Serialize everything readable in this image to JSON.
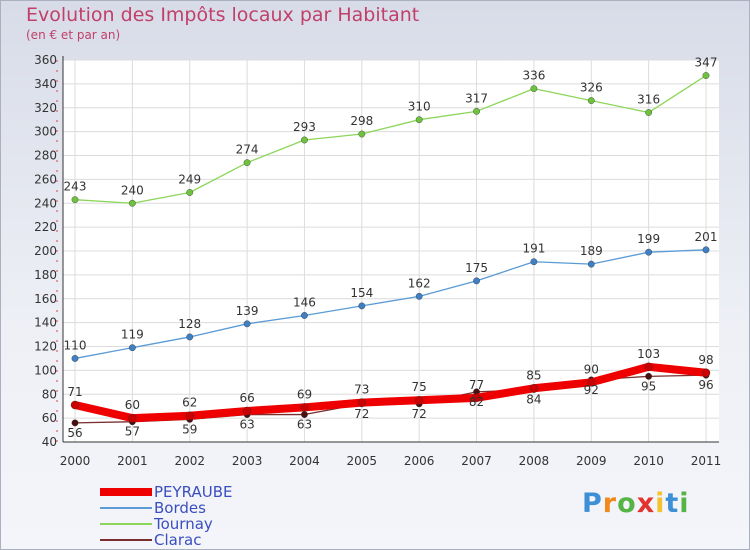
{
  "header": {
    "title": "Evolution des Impôts locaux par Habitant",
    "subtitle": "(en € et par an)"
  },
  "logo": {
    "text": "Proxiti",
    "letters": [
      "P",
      "r",
      "o",
      "x",
      "i",
      "t",
      "i"
    ],
    "colors": [
      "#3d8fd6",
      "#f08a1c",
      "#56b346",
      "#e3342f",
      "#f2c230",
      "#3d8fd6",
      "#56b346"
    ]
  },
  "chart_data": {
    "type": "line",
    "title": "Evolution des Impôts locaux par Habitant",
    "subtitle": "(en € et par an)",
    "xlabel": "",
    "ylabel": "",
    "x": [
      "2000",
      "2001",
      "2002",
      "2003",
      "2004",
      "2005",
      "2006",
      "2007",
      "2008",
      "2009",
      "2010",
      "2011"
    ],
    "ylim": [
      40,
      360
    ],
    "yticks": [
      40,
      60,
      80,
      100,
      120,
      140,
      160,
      180,
      200,
      220,
      240,
      260,
      280,
      300,
      320,
      340,
      360
    ],
    "grid": true,
    "legend": "bottom-left",
    "series": [
      {
        "name": "PEYRAUBE",
        "color": "#ee0000",
        "values": [
          71,
          60,
          62,
          66,
          69,
          73,
          75,
          77,
          85,
          90,
          103,
          98
        ]
      },
      {
        "name": "Bordes",
        "color": "#5b9bd5",
        "values": [
          110,
          119,
          128,
          139,
          146,
          154,
          162,
          175,
          191,
          189,
          199,
          201
        ]
      },
      {
        "name": "Tournay",
        "color": "#8cd65a",
        "values": [
          243,
          240,
          249,
          274,
          293,
          298,
          310,
          317,
          336,
          326,
          316,
          347
        ]
      },
      {
        "name": "Clarac",
        "color": "#7a2e2e",
        "values": [
          56,
          57,
          59,
          63,
          63,
          72,
          72,
          82,
          84,
          92,
          95,
          96
        ]
      }
    ]
  }
}
